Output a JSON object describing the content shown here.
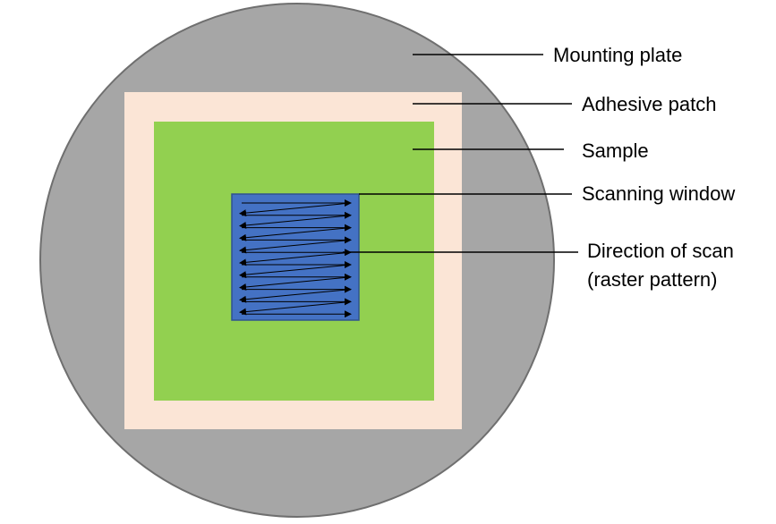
{
  "labels": {
    "mounting_plate": "Mounting plate",
    "adhesive_patch": "Adhesive patch",
    "sample": "Sample",
    "scanning_window": "Scanning window",
    "direction_line1": "Direction of scan",
    "direction_line2": "(raster pattern)"
  },
  "colors": {
    "mounting_plate": "#a6a6a6",
    "mounting_plate_border": "#6f6f6f",
    "adhesive_patch": "#fbe5d6",
    "sample": "#92d050",
    "scanning_window": "#4472c4",
    "scanning_window_border": "#2f528f",
    "lines": "#000000"
  },
  "raster": {
    "passes": 10,
    "pattern": "raster"
  }
}
